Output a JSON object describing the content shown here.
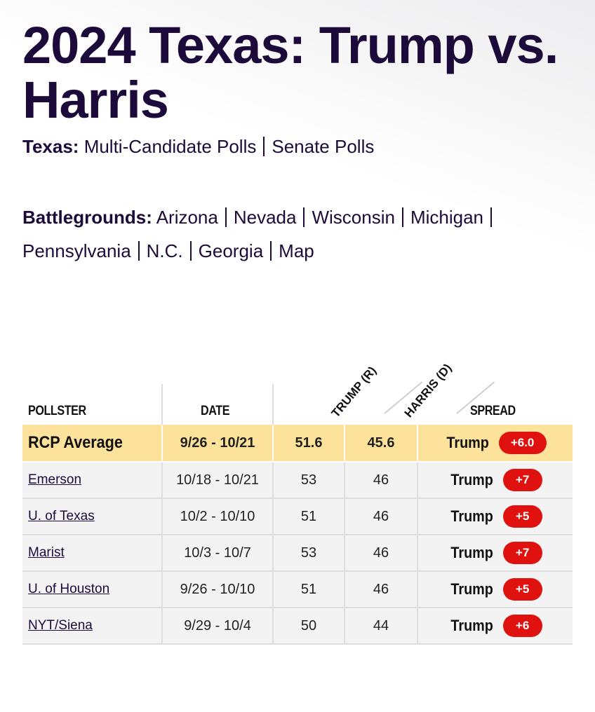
{
  "title": "2024 Texas: Trump vs. Harris",
  "texas_nav": {
    "lead": "Texas:",
    "links": [
      "Multi-Candidate Polls",
      "Senate Polls"
    ]
  },
  "battlegrounds_nav": {
    "lead": "Battlegrounds:",
    "links": [
      "Arizona",
      "Nevada",
      "Wisconsin",
      "Michigan",
      "Pennsylvania",
      "N.C.",
      "Georgia",
      "Map"
    ]
  },
  "table": {
    "headers": {
      "pollster": "POLLSTER",
      "date": "DATE",
      "trump": "TRUMP (R)",
      "harris": "HARRIS (D)",
      "spread": "SPREAD"
    },
    "average": {
      "label": "RCP Average",
      "date": "9/26 - 10/21",
      "trump": "51.6",
      "harris": "45.6",
      "spread_leader": "Trump",
      "spread_value": "+6.0"
    },
    "rows": [
      {
        "pollster": "Emerson",
        "date": "10/18 - 10/21",
        "trump": "53",
        "harris": "46",
        "spread_leader": "Trump",
        "spread_value": "+7"
      },
      {
        "pollster": "U. of Texas",
        "date": "10/2 - 10/10",
        "trump": "51",
        "harris": "46",
        "spread_leader": "Trump",
        "spread_value": "+5"
      },
      {
        "pollster": "Marist",
        "date": "10/3 - 10/7",
        "trump": "53",
        "harris": "46",
        "spread_leader": "Trump",
        "spread_value": "+7"
      },
      {
        "pollster": "U. of Houston",
        "date": "9/26 - 10/10",
        "trump": "51",
        "harris": "46",
        "spread_leader": "Trump",
        "spread_value": "+5"
      },
      {
        "pollster": "NYT/Siena",
        "date": "9/29 - 10/4",
        "trump": "50",
        "harris": "44",
        "spread_leader": "Trump",
        "spread_value": "+6"
      }
    ]
  },
  "colors": {
    "title": "#1c0b3a",
    "average_row": "#fde29b",
    "spread_badge": "#e0120f"
  }
}
